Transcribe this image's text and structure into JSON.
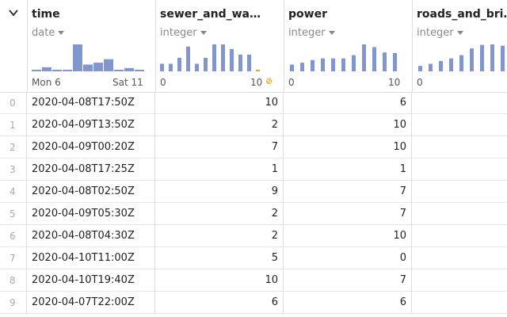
{
  "columns": [
    {
      "name": "time",
      "type": "date",
      "axis_min": "Mon 6",
      "axis_max": "Sat 11",
      "hist": [
        0.05,
        0.15,
        0.05,
        0.05,
        1.0,
        0.25,
        0.32,
        0.45,
        0.05,
        0.12,
        0.05
      ]
    },
    {
      "name": "sewer_and_wa…",
      "type": "integer",
      "axis_min": "0",
      "axis_max": "10",
      "hist": [
        0.28,
        0.28,
        0.5,
        0.92,
        0.28,
        0.5,
        1.0,
        1.0,
        0.83,
        0.62,
        0.62,
        0.05
      ]
    },
    {
      "name": "power",
      "type": "integer",
      "axis_min": "0",
      "axis_max": "10",
      "hist": [
        0.25,
        0.32,
        0.42,
        0.48,
        0.48,
        0.48,
        0.6,
        1.0,
        0.9,
        0.7,
        0.68
      ]
    },
    {
      "name": "roads_and_bri…",
      "type": "integer",
      "axis_min": "0",
      "axis_max": "",
      "hist": [
        0.2,
        0.28,
        0.38,
        0.48,
        0.6,
        0.85,
        0.98,
        1.0,
        0.95,
        0.6
      ]
    }
  ],
  "rows": [
    {
      "index": "0",
      "time": "2020-04-08T17:50Z",
      "sewer": "10",
      "power": "6"
    },
    {
      "index": "1",
      "time": "2020-04-09T13:50Z",
      "sewer": "2",
      "power": "10"
    },
    {
      "index": "2",
      "time": "2020-04-09T00:20Z",
      "sewer": "7",
      "power": "10"
    },
    {
      "index": "3",
      "time": "2020-04-08T17:25Z",
      "sewer": "1",
      "power": "1"
    },
    {
      "index": "4",
      "time": "2020-04-08T02:50Z",
      "sewer": "9",
      "power": "7"
    },
    {
      "index": "5",
      "time": "2020-04-09T05:30Z",
      "sewer": "2",
      "power": "7"
    },
    {
      "index": "6",
      "time": "2020-04-08T04:30Z",
      "sewer": "2",
      "power": "10"
    },
    {
      "index": "7",
      "time": "2020-04-10T11:00Z",
      "sewer": "5",
      "power": "0"
    },
    {
      "index": "8",
      "time": "2020-04-10T19:40Z",
      "sewer": "10",
      "power": "7"
    },
    {
      "index": "9",
      "time": "2020-04-07T22:00Z",
      "sewer": "6",
      "power": "6"
    }
  ],
  "colors": {
    "bar": "#8195cf",
    "warn": "#e7a31d"
  },
  "icons": {
    "expand": "chevron-down-icon",
    "warning": "warning-icon"
  }
}
